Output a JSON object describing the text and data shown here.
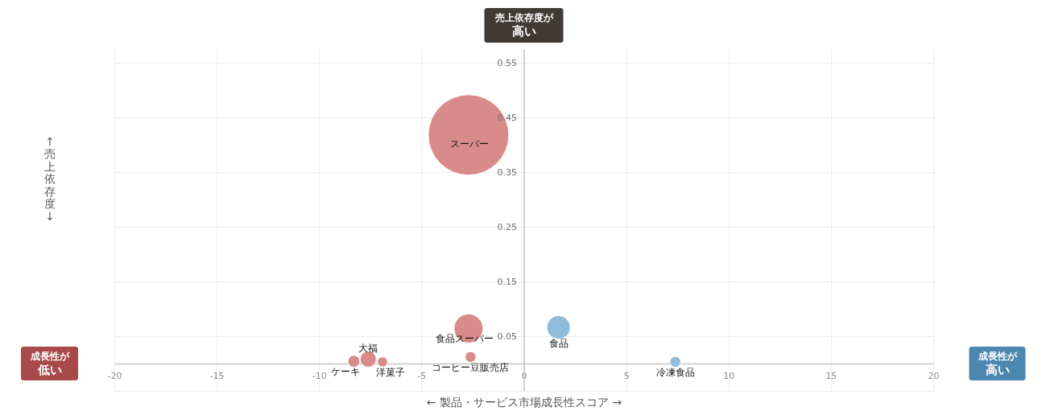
{
  "chart_data": {
    "type": "bubble",
    "xlabel": "← 製品・サービス市場成長性スコア →",
    "ylabel": "↑売上依存度↓",
    "annotations": [
      "売上依存度が",
      "高い",
      "成長性が",
      "低い",
      "成長性が",
      "高い"
    ],
    "xlim": [
      -20,
      20
    ],
    "ylim": [
      -0.05,
      0.575
    ],
    "xticks": [
      -20,
      -15,
      -10,
      -5,
      0,
      5,
      10,
      15,
      20
    ],
    "yticks": [
      {
        "value": -0.05,
        "label": null
      },
      0.05,
      0.15,
      0.25,
      0.35,
      0.45,
      0.55
    ],
    "grid": true,
    "marker": "circle",
    "series": [
      {
        "name": "スーパー",
        "color": "#d98b89",
        "x": [
          -2.7
        ],
        "values": [
          0.418
        ],
        "sizes": [
          1
        ]
      },
      {
        "name": "食品スーパー",
        "color": "#d98b89",
        "x": [
          -2.7
        ],
        "values": [
          0.064
        ],
        "sizes": [
          0.13
        ]
      },
      {
        "name": "コーヒー豆販売店",
        "color": "#d98b89",
        "x": [
          -2.6
        ],
        "values": [
          0.012
        ],
        "sizes": [
          0.018
        ]
      },
      {
        "name": "大福",
        "color": "#d98b89",
        "x": [
          -7.6
        ],
        "values": [
          0.008
        ],
        "sizes": [
          0.04
        ]
      },
      {
        "name": "ケーキ",
        "color": "#d98b89",
        "x": [
          -8.3
        ],
        "values": [
          0.004
        ],
        "sizes": [
          0.022
        ]
      },
      {
        "name": "洋菓子",
        "color": "#d98b89",
        "x": [
          -6.9
        ],
        "values": [
          0.003
        ],
        "sizes": [
          0.016
        ]
      },
      {
        "name": "食品",
        "color": "#8fbcdb",
        "x": [
          1.7
        ],
        "values": [
          0.066
        ],
        "sizes": [
          0.086
        ]
      },
      {
        "name": "冷凍食品",
        "color": "#8fbcdb",
        "x": [
          7.4
        ],
        "values": [
          0.003
        ],
        "sizes": [
          0.018
        ]
      }
    ]
  }
}
